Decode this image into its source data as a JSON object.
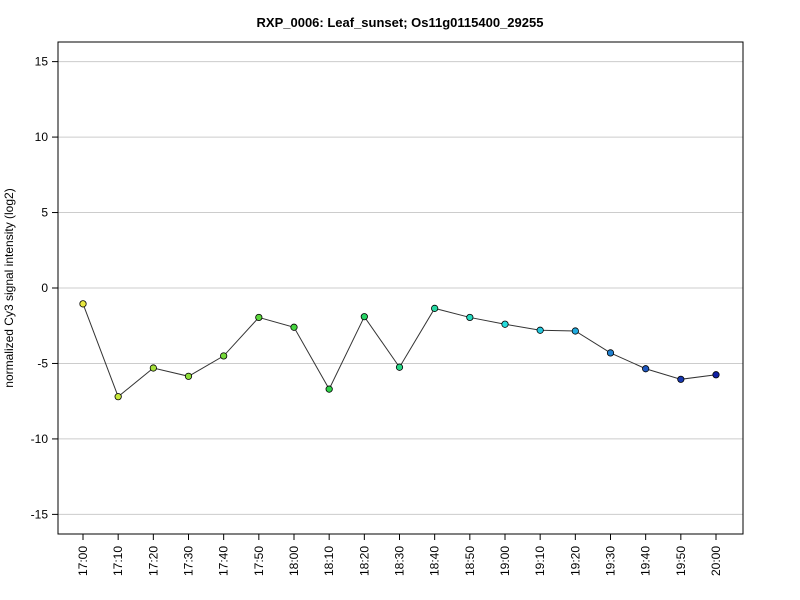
{
  "chart_data": {
    "type": "line",
    "title": "RXP_0006: Leaf_sunset; Os11g0115400_29255",
    "xlabel": "",
    "ylabel": "normalized Cy3 signal intensity (log2)",
    "ylim": [
      -16.3,
      16.3
    ],
    "yticks": [
      -15,
      -10,
      -5,
      0,
      5,
      10,
      15
    ],
    "grid": true,
    "categories": [
      "17:00",
      "17:10",
      "17:20",
      "17:30",
      "17:40",
      "17:50",
      "18:00",
      "18:10",
      "18:20",
      "18:30",
      "18:40",
      "18:50",
      "19:00",
      "19:10",
      "19:20",
      "19:30",
      "19:40",
      "19:50",
      "20:00"
    ],
    "values": [
      -1.05,
      -7.2,
      -5.3,
      -5.85,
      -4.5,
      -1.95,
      -2.6,
      -6.7,
      -1.9,
      -5.25,
      -1.35,
      -1.95,
      -2.4,
      -2.8,
      -2.85,
      -4.3,
      -5.35,
      -6.05,
      -5.75
    ],
    "point_colors": [
      "#e8e840",
      "#c8e83a",
      "#a6e03a",
      "#8ede3a",
      "#76da3a",
      "#5cd83c",
      "#46d640",
      "#2ed448",
      "#28d465",
      "#26d584",
      "#26d8a2",
      "#26dac0",
      "#26dcdc",
      "#24c8de",
      "#20aade",
      "#2080d0",
      "#2058c0",
      "#1838b0",
      "#1020a4"
    ]
  }
}
